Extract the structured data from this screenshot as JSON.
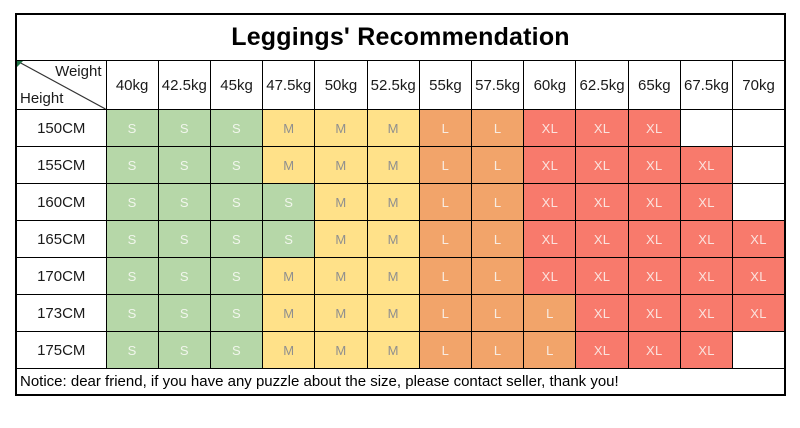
{
  "title": "Leggings' Recommendation",
  "corner": {
    "top_label": "Weight",
    "bottom_label": "Height"
  },
  "notice": "Notice: dear friend, if you have any puzzle about the size, please contact seller, thank you!",
  "size_colors": {
    "S": {
      "bg": "#b6d7a8",
      "fg": "#f1f6ec"
    },
    "M": {
      "bg": "#ffe189",
      "fg": "#8f8f8f"
    },
    "L": {
      "bg": "#f2a46a",
      "fg": "#f8ece2"
    },
    "XL": {
      "bg": "#f87a6c",
      "fg": "#fbe3de"
    }
  },
  "chart_data": {
    "type": "table",
    "title": "Leggings' Recommendation",
    "col_axis_label": "Weight",
    "row_axis_label": "Height",
    "columns": [
      "40kg",
      "42.5kg",
      "45kg",
      "47.5kg",
      "50kg",
      "52.5kg",
      "55kg",
      "57.5kg",
      "60kg",
      "62.5kg",
      "65kg",
      "67.5kg",
      "70kg"
    ],
    "rows": [
      {
        "height": "150CM",
        "values": [
          "S",
          "S",
          "S",
          "M",
          "M",
          "M",
          "L",
          "L",
          "XL",
          "XL",
          "XL",
          "",
          ""
        ]
      },
      {
        "height": "155CM",
        "values": [
          "S",
          "S",
          "S",
          "M",
          "M",
          "M",
          "L",
          "L",
          "XL",
          "XL",
          "XL",
          "XL",
          ""
        ]
      },
      {
        "height": "160CM",
        "values": [
          "S",
          "S",
          "S",
          "S",
          "M",
          "M",
          "L",
          "L",
          "XL",
          "XL",
          "XL",
          "XL",
          ""
        ]
      },
      {
        "height": "165CM",
        "values": [
          "S",
          "S",
          "S",
          "S",
          "M",
          "M",
          "L",
          "L",
          "XL",
          "XL",
          "XL",
          "XL",
          "XL"
        ]
      },
      {
        "height": "170CM",
        "values": [
          "S",
          "S",
          "S",
          "M",
          "M",
          "M",
          "L",
          "L",
          "XL",
          "XL",
          "XL",
          "XL",
          "XL"
        ]
      },
      {
        "height": "173CM",
        "values": [
          "S",
          "S",
          "S",
          "M",
          "M",
          "M",
          "L",
          "L",
          "L",
          "XL",
          "XL",
          "XL",
          "XL"
        ]
      },
      {
        "height": "175CM",
        "values": [
          "S",
          "S",
          "S",
          "M",
          "M",
          "M",
          "L",
          "L",
          "L",
          "XL",
          "XL",
          "XL",
          ""
        ]
      }
    ]
  }
}
